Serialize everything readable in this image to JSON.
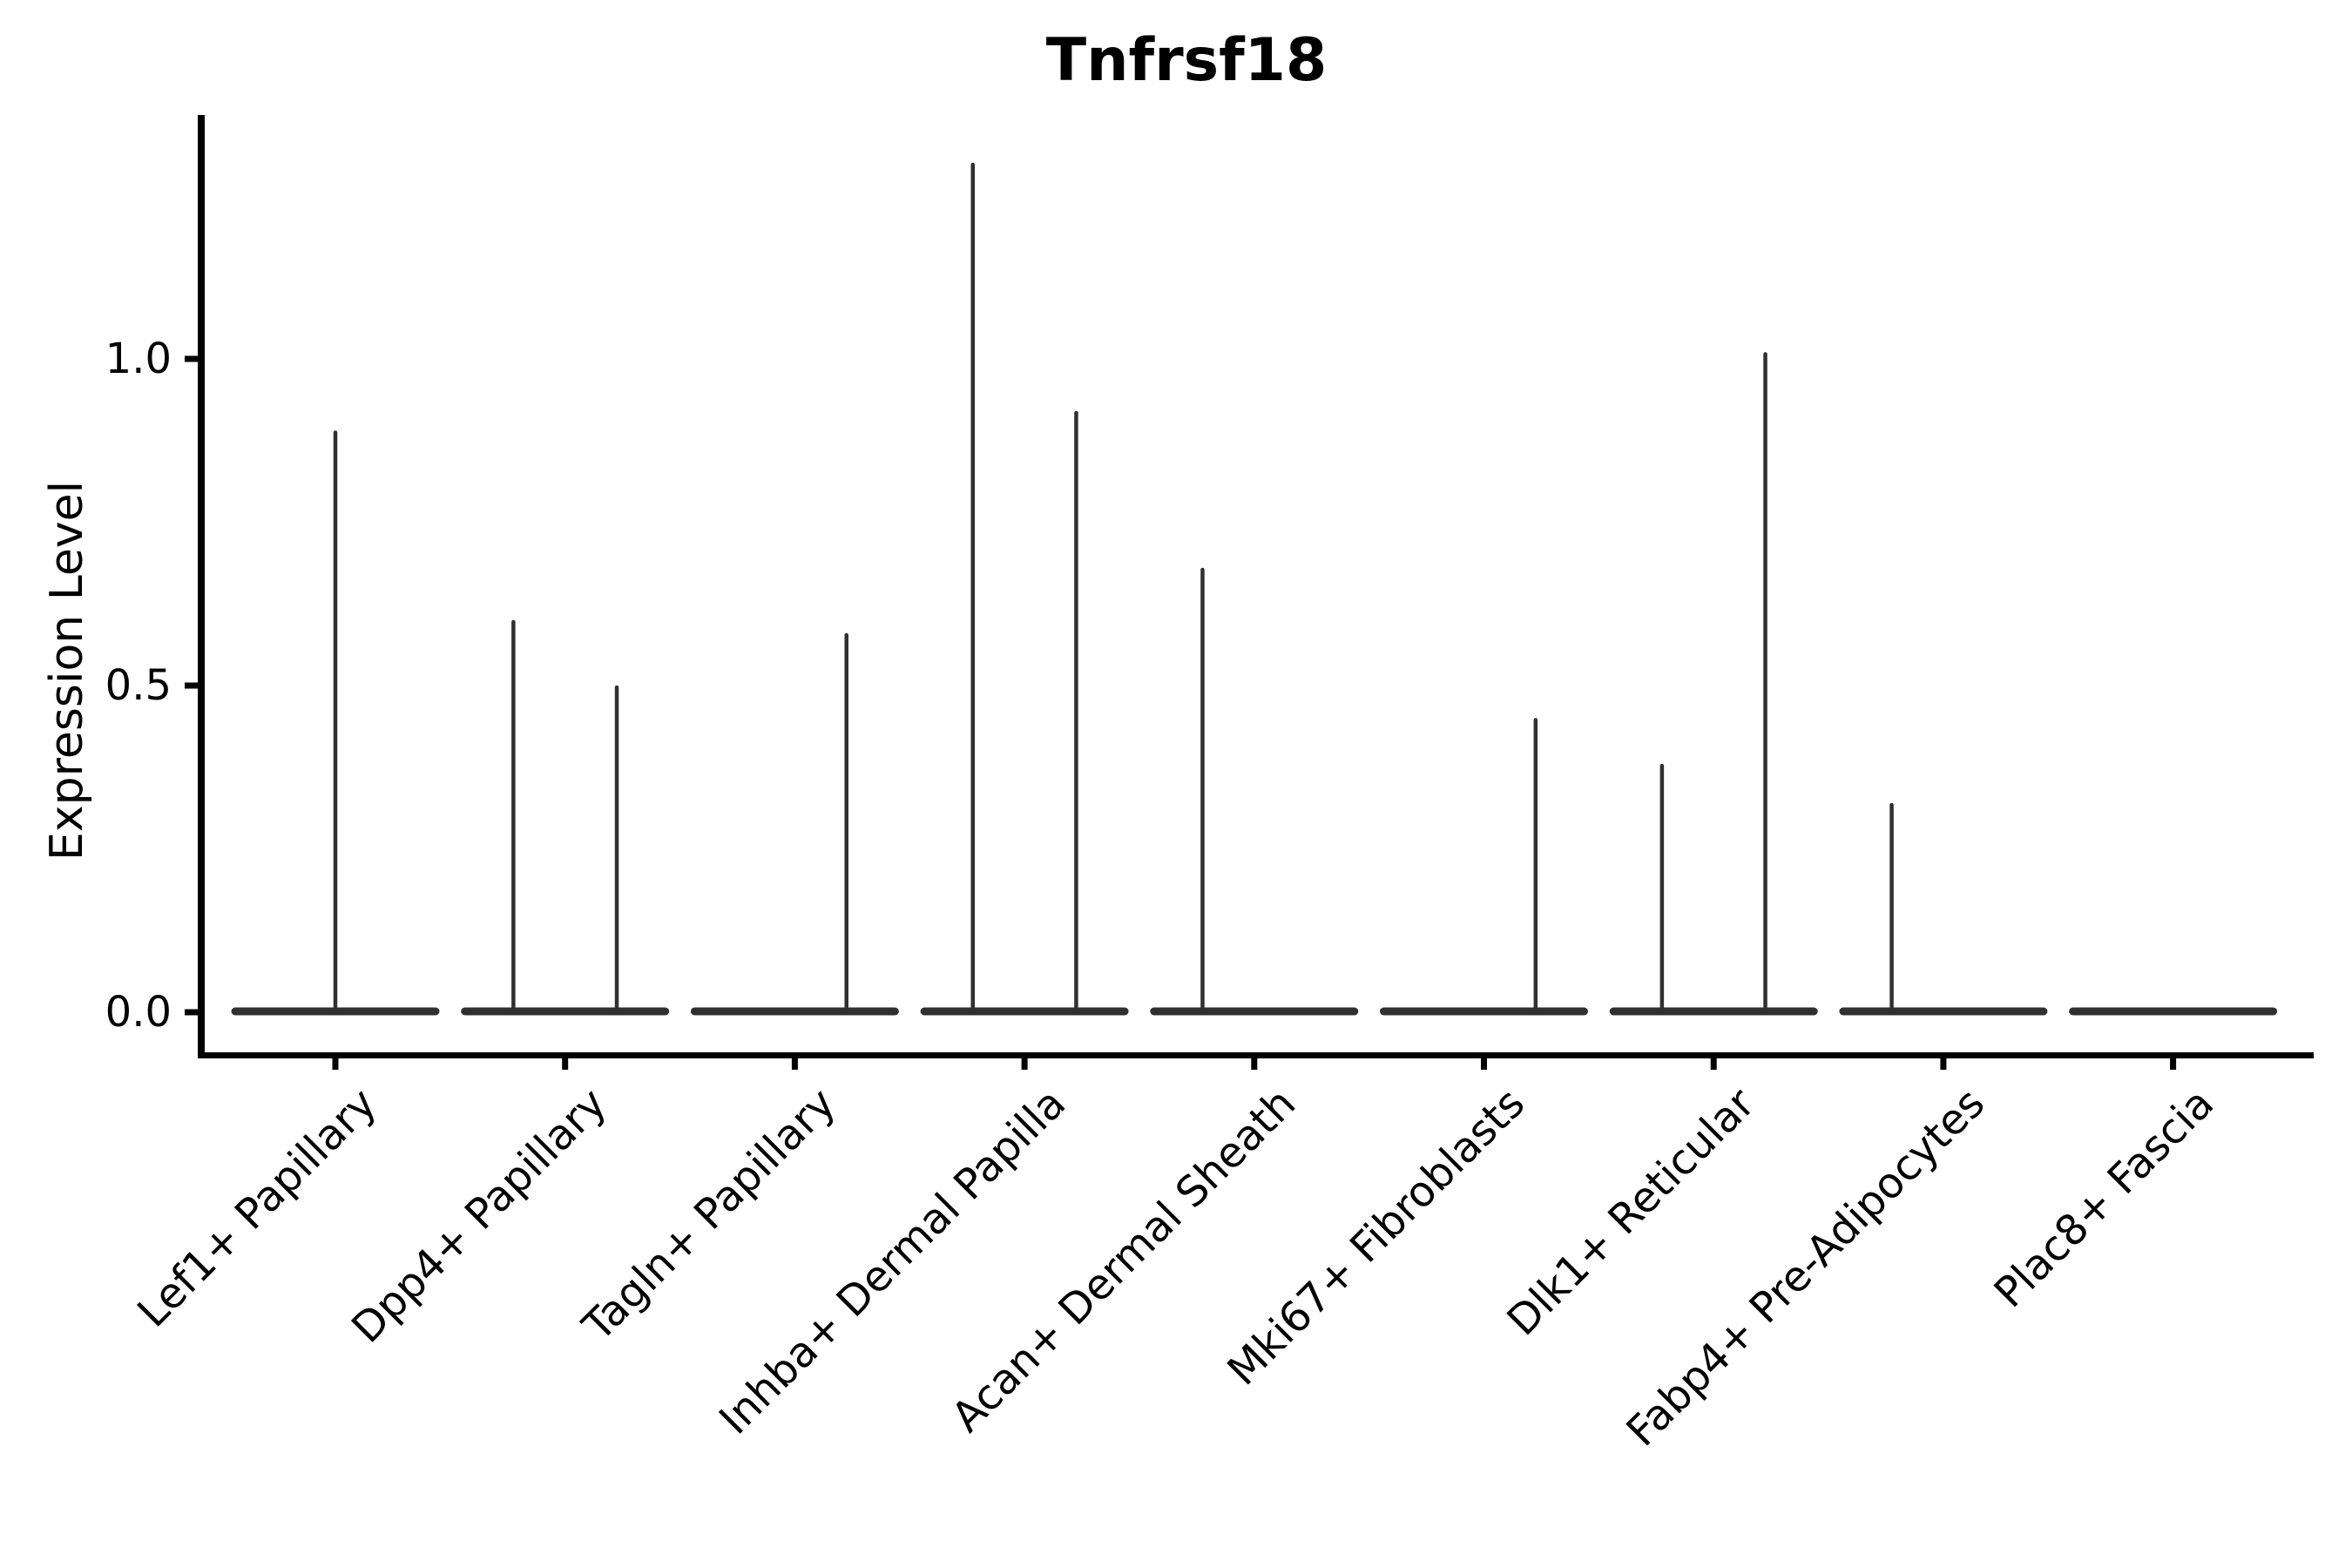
{
  "chart_data": {
    "type": "violin",
    "title": "Tnfrsf18",
    "ylabel": "Expression Level",
    "xlabel": "",
    "ylim": [
      0,
      1.36
    ],
    "grid": false,
    "legend": "none",
    "background_color": "#ffffff",
    "axis_color": "#000000",
    "violin_color": "#303030",
    "ytick_labels": [
      "0.0",
      "0.5",
      "1.0"
    ],
    "ytick_values": [
      0.0,
      0.5,
      1.0
    ],
    "categories": [
      "Lef1+ Papillary",
      "Dpp4+ Papillary",
      "Tagln+ Papillary",
      "Inhba+ Dermal Papilla",
      "Acan+ Dermal Sheath",
      "Mki67+ Fibroblasts",
      "Dlk1+ Reticular",
      "Fabp4+ Pre-Adipocytes",
      "Plac8+ Fascia"
    ],
    "violins": [
      {
        "category": "Lef1+ Papillary",
        "baseline_value": 0.0,
        "spikes": [
          {
            "group_pos": "center",
            "max_expression": 0.89
          }
        ]
      },
      {
        "category": "Dpp4+ Papillary",
        "baseline_value": 0.0,
        "spikes": [
          {
            "group_pos": "left",
            "max_expression": 0.6
          },
          {
            "group_pos": "right",
            "max_expression": 0.5
          }
        ]
      },
      {
        "category": "Tagln+ Papillary",
        "baseline_value": 0.0,
        "spikes": [
          {
            "group_pos": "right",
            "max_expression": 0.58
          }
        ]
      },
      {
        "category": "Inhba+ Dermal Papilla",
        "baseline_value": 0.0,
        "spikes": [
          {
            "group_pos": "left",
            "max_expression": 1.3
          },
          {
            "group_pos": "right",
            "max_expression": 0.92
          }
        ]
      },
      {
        "category": "Acan+ Dermal Sheath",
        "baseline_value": 0.0,
        "spikes": [
          {
            "group_pos": "left",
            "max_expression": 0.68
          }
        ]
      },
      {
        "category": "Mki67+ Fibroblasts",
        "baseline_value": 0.0,
        "spikes": [
          {
            "group_pos": "right",
            "max_expression": 0.45
          }
        ]
      },
      {
        "category": "Dlk1+ Reticular",
        "baseline_value": 0.0,
        "spikes": [
          {
            "group_pos": "left",
            "max_expression": 0.38
          },
          {
            "group_pos": "right",
            "max_expression": 1.01
          }
        ]
      },
      {
        "category": "Fabp4+ Pre-Adipocytes",
        "baseline_value": 0.0,
        "spikes": [
          {
            "group_pos": "left",
            "max_expression": 0.32
          }
        ]
      },
      {
        "category": "Plac8+ Fascia",
        "baseline_value": 0.0,
        "spikes": []
      }
    ]
  }
}
